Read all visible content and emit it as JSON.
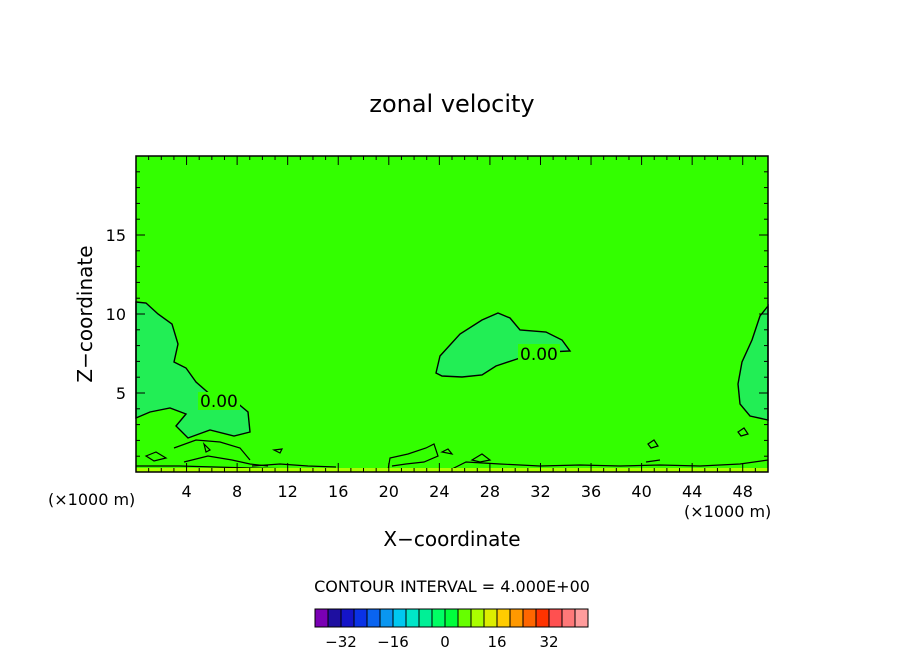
{
  "chart_data": {
    "type": "heatmap",
    "title": "zonal velocity",
    "xlabel": "X−coordinate",
    "ylabel": "Z−coordinate",
    "x_unit_left": "(×1000 m)",
    "x_unit_right": "(×1000 m)",
    "x_ticks": [
      "4",
      "8",
      "12",
      "16",
      "20",
      "24",
      "28",
      "32",
      "36",
      "40",
      "44",
      "48"
    ],
    "y_ticks": [
      "5",
      "10",
      "15"
    ],
    "xlim": [
      0,
      50
    ],
    "ylim": [
      0,
      20
    ],
    "contour_label": "0.00",
    "contour_interval_text": "CONTOUR INTERVAL = 4.000E+00",
    "field_color": "#33ff00",
    "region_color": "#22ee55",
    "colorbar": {
      "colors": [
        "#7a00b4",
        "#1e0fa0",
        "#1414c8",
        "#0a32e6",
        "#0a64f0",
        "#0a96f0",
        "#00c8f0",
        "#00e6c8",
        "#00f096",
        "#00ff64",
        "#00ff3c",
        "#66ff00",
        "#aaff00",
        "#ddee00",
        "#ffcc00",
        "#ff9900",
        "#ff6600",
        "#ff3300",
        "#ff5050",
        "#ff7878",
        "#ff9c9c"
      ],
      "tick_labels": [
        "−32",
        "−16",
        "0",
        "16",
        "32"
      ],
      "tick_values": [
        -32,
        -16,
        0,
        16,
        32
      ],
      "range": [
        -40,
        44
      ]
    }
  }
}
